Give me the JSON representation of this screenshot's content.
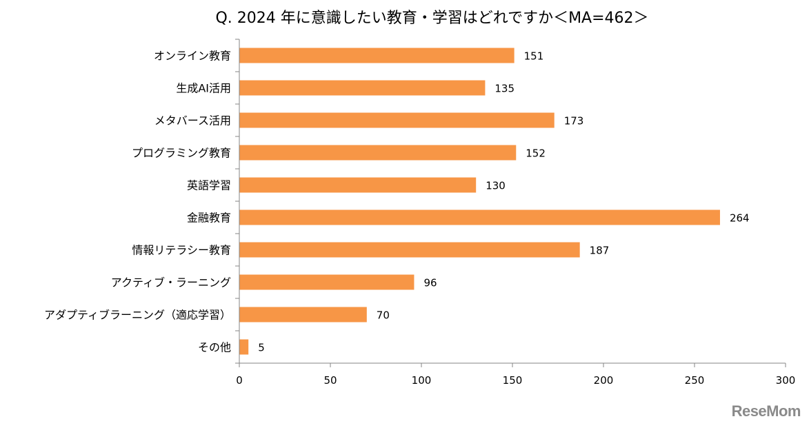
{
  "chart_data": {
    "type": "bar",
    "orientation": "horizontal",
    "title": "Q. 2024 年に意識したい教育・学習はどれですか＜MA=462＞",
    "categories": [
      "オンライン教育",
      "生成AI活用",
      "メタバース活用",
      "プログラミング教育",
      "英語学習",
      "金融教育",
      "情報リテラシー教育",
      "アクティブ・ラーニング",
      "アダプティブラーニング（適応学習）",
      "その他"
    ],
    "values": [
      151,
      135,
      173,
      152,
      130,
      264,
      187,
      96,
      70,
      5
    ],
    "xlim": [
      0,
      300
    ],
    "xticks": [
      0,
      50,
      100,
      150,
      200,
      250,
      300
    ],
    "grid": false,
    "bar_color": "#F79646",
    "xlabel": "",
    "ylabel": ""
  },
  "logo": "ReseMom"
}
